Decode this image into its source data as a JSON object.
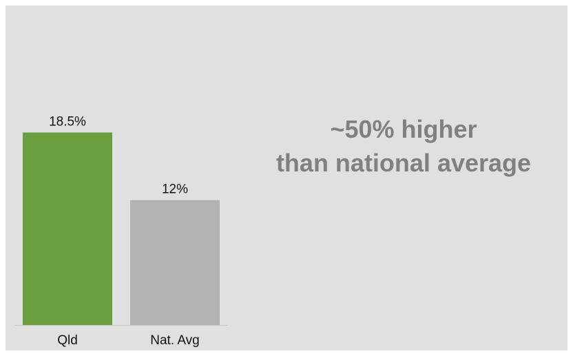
{
  "chart_data": {
    "type": "bar",
    "categories": [
      "Qld",
      "Nat. Avg"
    ],
    "values": [
      18.5,
      12
    ],
    "data_labels": [
      "18.5%",
      "12%"
    ],
    "ylim": [
      0,
      25
    ],
    "grid": false,
    "bar_colors": [
      "#6a9e3f",
      "#b3b3b3"
    ]
  },
  "callout": {
    "line1": "~50% higher",
    "line2": "than national average"
  },
  "colors": {
    "background": "#e0e0e0",
    "callout_text": "#808080",
    "axis": "#c4c4c4"
  }
}
